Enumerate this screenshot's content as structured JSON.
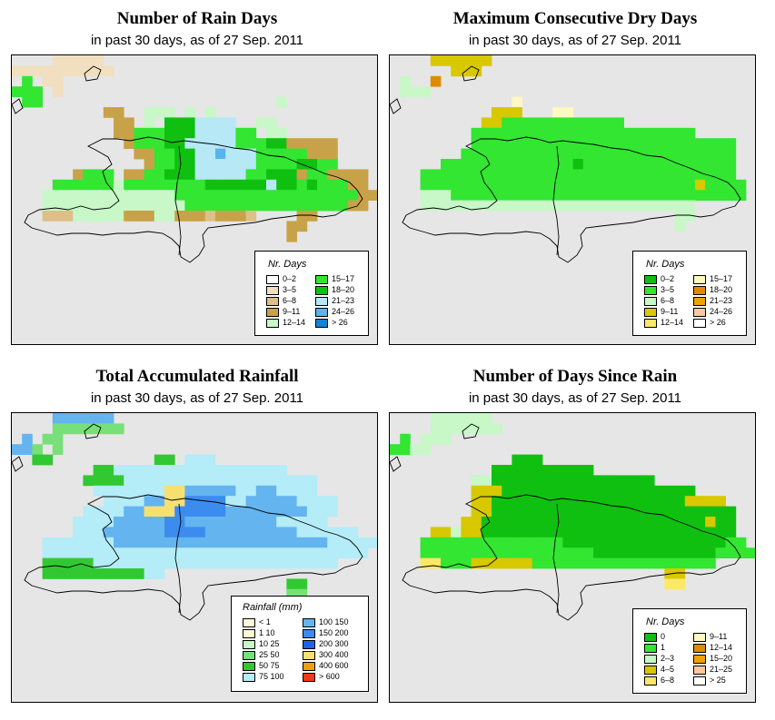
{
  "panels": [
    {
      "id": "rain-days",
      "title": "Number of Rain Days",
      "subtitle": "in past 30 days, as of  27 Sep. 2011",
      "legend": {
        "title": "Nr. Days",
        "items": [
          {
            "label": "0–2",
            "color": "#ffffff"
          },
          {
            "label": "3–5",
            "color": "#f1dfc0"
          },
          {
            "label": "6–8",
            "color": "#dcc088"
          },
          {
            "label": "9–11",
            "color": "#c8a248"
          },
          {
            "label": "12–14",
            "color": "#c8f7c8"
          },
          {
            "label": "15–17",
            "color": "#32e632"
          },
          {
            "label": "18–20",
            "color": "#10c010"
          },
          {
            "label": "21–23",
            "color": "#b6e8f6"
          },
          {
            "label": "24–26",
            "color": "#58b4ec"
          },
          {
            "label": "> 26",
            "color": "#1482d2"
          }
        ]
      }
    },
    {
      "id": "max-dry-days",
      "title": "Maximum Consecutive Dry Days",
      "subtitle": "in past 30 days, as of  27 Sep. 2011",
      "legend": {
        "title": "Nr. Days",
        "items": [
          {
            "label": "0–2",
            "color": "#10c010"
          },
          {
            "label": "3–5",
            "color": "#32e632"
          },
          {
            "label": "6–8",
            "color": "#c8f7c8"
          },
          {
            "label": "9–11",
            "color": "#d8c800"
          },
          {
            "label": "12–14",
            "color": "#fce868"
          },
          {
            "label": "15–17",
            "color": "#fff8c0"
          },
          {
            "label": "18–20",
            "color": "#e08a00"
          },
          {
            "label": "21–23",
            "color": "#f0a000"
          },
          {
            "label": "24–26",
            "color": "#fcc8a0"
          },
          {
            "label": "> 26",
            "color": "#ffffff"
          }
        ]
      }
    },
    {
      "id": "total-rainfall",
      "title": "Total Accumulated Rainfall",
      "subtitle": "in past 30 days, as of  27 Sep. 2011",
      "legend": {
        "title": "Rainfall (mm)",
        "items": [
          {
            "label": "< 1",
            "color": "#fff8dc"
          },
          {
            "label": "1   10",
            "color": "#fafad2"
          },
          {
            "label": "10   25",
            "color": "#c8f7c8"
          },
          {
            "label": "25   50",
            "color": "#78e078"
          },
          {
            "label": "50   75",
            "color": "#32c832"
          },
          {
            "label": "75   100",
            "color": "#b4ecf8"
          },
          {
            "label": "100   150",
            "color": "#64b4f0"
          },
          {
            "label": "150   200",
            "color": "#3c8cf0"
          },
          {
            "label": "200   300",
            "color": "#1e64e6"
          },
          {
            "label": "300   400",
            "color": "#f8e070"
          },
          {
            "label": "400   600",
            "color": "#f0a000"
          },
          {
            "label": "> 600",
            "color": "#f03c14"
          }
        ]
      }
    },
    {
      "id": "days-since-rain",
      "title": "Number of Days Since Rain",
      "subtitle": "in past 30 days, as of  27 Sep. 2011",
      "legend": {
        "title": "Nr. Days",
        "items": [
          {
            "label": "0",
            "color": "#10c010"
          },
          {
            "label": "1",
            "color": "#32e632"
          },
          {
            "label": "2–3",
            "color": "#c8f7c8"
          },
          {
            "label": "4–5",
            "color": "#d8c800"
          },
          {
            "label": "6–8",
            "color": "#fce868"
          },
          {
            "label": "9–11",
            "color": "#fff8c0"
          },
          {
            "label": "12–14",
            "color": "#e08a00"
          },
          {
            "label": "15–20",
            "color": "#f0a000"
          },
          {
            "label": "21–25",
            "color": "#fcc8a0"
          },
          {
            "label": "> 25",
            "color": "#ffffff"
          }
        ]
      }
    }
  ],
  "grids": {
    "rain-days": [
      "....aaaaa...........................",
      "aaaaaaaaaa..........................",
      ".s.aa...............................",
      "sss.a...............................",
      ".ss.......................e.........",
      ".........dd..eee.e.e................",
      "..........dd.e.ggghhhh..ee..........",
      "..........ddfffggghhhhff.ee.........",
      "...........dfffgghhhhhfffggddddd....",
      "............ddffgghhihhhfffffddd....",
      ".............dffgghhhhhhffffggff....",
      "......dfff.ddffggghhhhhffgggdffdddd.",
      "....ffffffeffffffffgggggghggfgfffdd.",
      "...eeeeeeeeeeeeeffffffffffffffffffdd",
      "...eeeeeeeeeeeeeeffffffffffffffffdd.",
      "...ccceeeeedddeedddcdddc....dd......",
      "...........................dd.......",
      "...........................d........"
    ],
    "max-dry-days": [
      "....dddddd..........................",
      "......ddd...........................",
      ".n..g...............................",
      ".nnn................................",
      "............f.......................",
      "..........ddd...ff..................",
      ".........ddbbbbbbbbbbbb.............",
      "........bbbbbbbbbbbbbbbbbbbbbb......",
      "........bbbbbbbbbbbbbbbbbbbbbbbbbb..",
      ".......bbbbbbbbbbbbbbbbbbbbbbbbbbb..",
      ".....bbbbbbbbbbbbbabbbbbbbbbbbbbbb..",
      "...bbbbbbbbbbbbbbbbbbbbbbbbbbbbbbb..",
      "...bbbbbbbbbbbbbbbbbbbbbbbbbbbdbbbb.",
      "...cccbbbbbbbbbbbbbbbbbbbbbbbbbbbbb.",
      "...ccccccccccccccccccccccccccc......",
      "............................cc......",
      "............................c......."
    ],
    "total-rainfall": [
      "....hhhhhh..........................",
      "....ddddddd.........................",
      ".h.dd...............................",
      "hhd.d...............................",
      "..ee..........ee.ggg................",
      "........eeggggggggggggggggg.........",
      ".......eeeeggggggggggggggggggg.......",
      "........gggggggjjhhhhhgghhgggg......",
      ".........gggghhjjiiiigghhhhhgggg....",
      ".......gggghhjjjiiiiihhhhhhhhggg....",
      "......gggghhhhhiihhhhhhhhhggggg.....",
      "......ggghhhhhhiiiihhhhhhhhhgggggg..",
      "...ggggggghhhhhhhhhhhhhhhhhhhhhggggg",
      "...gggggggggggggggggggggggggggggggg.",
      "...eeeeegggggggggggggggggggggggg....",
      "...eeeeeeeeeegg.....................",
      "...........................ee.......",
      "...........................dd......."
    ],
    "days-since-rain": [
      "....cccccc..........................",
      "....ccccccc.........................",
      ".b.ccc..............................",
      "bbcc................................",
      "............aaa.....................",
      "..........aaaaaaaaaa................",
      "........ccaaaaaaaaaaaaaaaa...........",
      "........dddaaaaaaaaaaaaaaaaaaa.......",
      "........ddaaaaaaaaaaaaaaaaaaadddd....",
      "........ddaaaaaaaaaaaaaaaaaaaaaaaa...",
      ".......ddaaaaaaaaaaaaaaaaaaaaaadaa...",
      "....ddcddaaaaaaaaaaaaaaaaaaaaaaaaa...",
      "...bbbbbbbbbbbbbbaaaaaaaaaaaaaaaabb..",
      "...bbbbbbbbbbbbbbbbbaaaaaaaaaaaabbbb.",
      "...eebbbddddddbbbbbbbbbbbbbbbbbb.....",
      "...........................dd.......",
      "...........................ee......."
    ]
  }
}
